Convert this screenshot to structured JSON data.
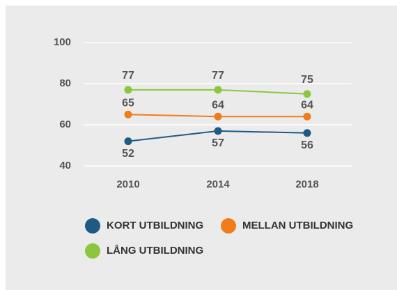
{
  "chart_data": {
    "type": "line",
    "categories": [
      "2010",
      "2014",
      "2018"
    ],
    "series": [
      {
        "name": "KORT UTBILDNING",
        "color": "#1f5a85",
        "values": [
          52,
          57,
          56
        ]
      },
      {
        "name": "MELLAN UTBILDNING",
        "color": "#f07c1a",
        "values": [
          65,
          64,
          64
        ]
      },
      {
        "name": "LÅNG UTBILDNING",
        "color": "#8cc63f",
        "values": [
          77,
          77,
          75
        ]
      }
    ],
    "ylim": [
      40,
      100
    ],
    "yticks": [
      40,
      60,
      80,
      100
    ],
    "grid": true
  }
}
